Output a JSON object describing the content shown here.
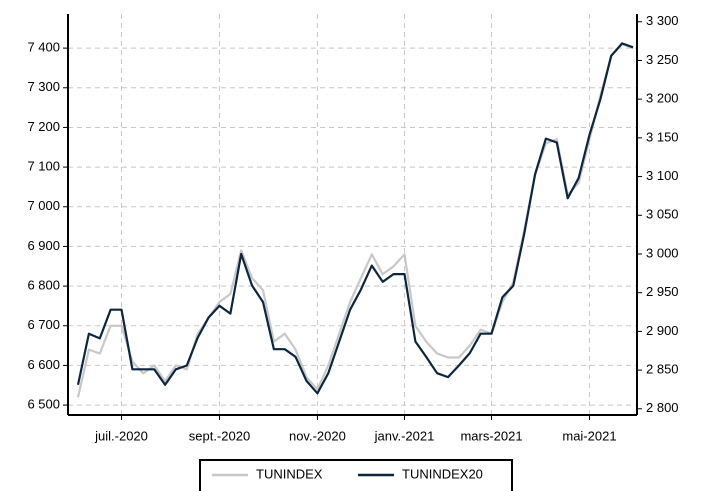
{
  "chart_data": {
    "type": "line",
    "categories": [
      null,
      null,
      null,
      null,
      "juil.-2020",
      null,
      null,
      null,
      null,
      null,
      null,
      null,
      null,
      "sept.-2020",
      null,
      null,
      null,
      null,
      null,
      null,
      null,
      null,
      "nov.-2020",
      null,
      null,
      null,
      null,
      null,
      null,
      null,
      "janv.-2021",
      null,
      null,
      null,
      null,
      null,
      null,
      null,
      "mars-2021",
      null,
      null,
      null,
      null,
      null,
      null,
      null,
      null,
      "mai-2021",
      null,
      null,
      null,
      null
    ],
    "series": [
      {
        "name": "TUNINDEX",
        "color": "#c8c8c8",
        "values": [
          6520,
          6640,
          6630,
          6700,
          6700,
          6610,
          6580,
          6600,
          6560,
          6600,
          6590,
          6680,
          6720,
          6760,
          6780,
          6890,
          6820,
          6790,
          6660,
          6680,
          6640,
          6570,
          6540,
          6600,
          6680,
          6760,
          6820,
          6880,
          6830,
          6850,
          6880,
          6700,
          6660,
          6630,
          6620,
          6620,
          6650,
          6690,
          6680,
          6760,
          6810,
          6940,
          7080,
          7160,
          7170,
          7030,
          7060,
          7170,
          7280,
          7380,
          7410,
          7400
        ]
      },
      {
        "name": "TUNINDEX20",
        "color": "#0d2640",
        "axis": "y2",
        "values": [
          2831,
          2897,
          2891,
          2928,
          2928,
          2851,
          2851,
          2851,
          2831,
          2851,
          2856,
          2892,
          2918,
          2933,
          2923,
          3000,
          2959,
          2938,
          2877,
          2877,
          2867,
          2836,
          2820,
          2846,
          2887,
          2928,
          2954,
          2985,
          2964,
          2974,
          2974,
          2887,
          2867,
          2846,
          2841,
          2856,
          2872,
          2897,
          2897,
          2944,
          2959,
          3026,
          3103,
          3149,
          3144,
          3072,
          3098,
          3154,
          3200,
          3256,
          3272,
          3267
        ]
      }
    ],
    "ylim": [
      6475,
      7486
    ],
    "yticks": [
      {
        "value": 6500,
        "label": "6 500"
      },
      {
        "value": 6600,
        "label": "6 600"
      },
      {
        "value": 6700,
        "label": "6 700"
      },
      {
        "value": 6800,
        "label": "6 800"
      },
      {
        "value": 6900,
        "label": "6 900"
      },
      {
        "value": 7000,
        "label": "7 000"
      },
      {
        "value": 7100,
        "label": "7 100"
      },
      {
        "value": 7200,
        "label": "7 200"
      },
      {
        "value": 7300,
        "label": "7 300"
      },
      {
        "value": 7400,
        "label": "7 400"
      }
    ],
    "y2lim": [
      2792,
      3310
    ],
    "y2ticks": [
      {
        "value": 2800,
        "label": "2 800"
      },
      {
        "value": 2850,
        "label": "2 850"
      },
      {
        "value": 2900,
        "label": "2 900"
      },
      {
        "value": 2950,
        "label": "2 950"
      },
      {
        "value": 3000,
        "label": "3 000"
      },
      {
        "value": 3050,
        "label": "3 050"
      },
      {
        "value": 3100,
        "label": "3 100"
      },
      {
        "value": 3150,
        "label": "3 150"
      },
      {
        "value": 3200,
        "label": "3 200"
      },
      {
        "value": 3250,
        "label": "3 250"
      },
      {
        "value": 3300,
        "label": "3 300"
      }
    ],
    "grid": true,
    "legend": "bottom"
  }
}
